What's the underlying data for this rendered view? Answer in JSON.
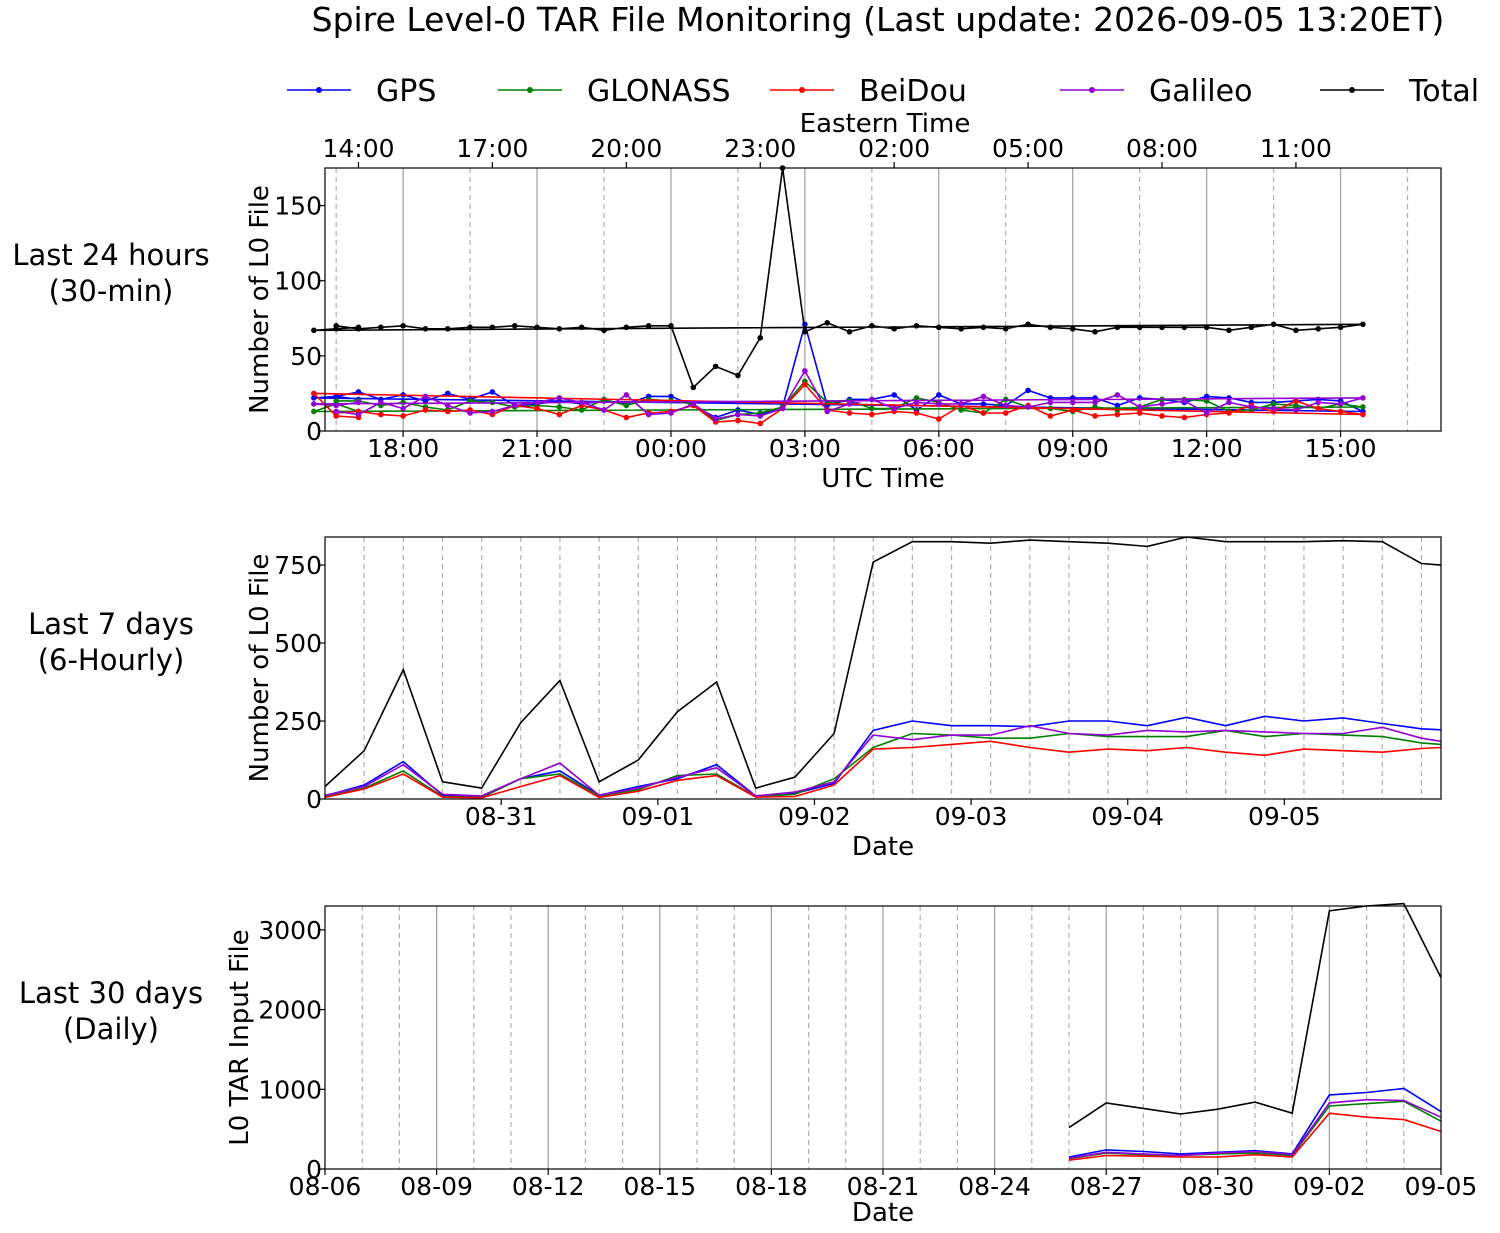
{
  "figure_title": "Spire Level-0 TAR File Monitoring (Last update: 2026-09-05 13:20ET)",
  "legend": [
    {
      "name": "GPS",
      "color": "#0000ff"
    },
    {
      "name": "GLONASS",
      "color": "#008000"
    },
    {
      "name": "BeiDou",
      "color": "#ff0000"
    },
    {
      "name": "Galileo",
      "color": "#9400d3"
    },
    {
      "name": "Total",
      "color": "#000000"
    }
  ],
  "row_labels": [
    [
      "Last 24 hours",
      "(30-min)"
    ],
    [
      "Last 7 days",
      "(6-Hourly)"
    ],
    [
      "Last 30 days",
      "(Daily)"
    ]
  ],
  "chart_data": [
    {
      "type": "line",
      "markers": true,
      "xlabel": "UTC Time",
      "ylabel": "Number of L0 File",
      "top_xlabel": "Eastern Time",
      "x": [
        "16:30",
        "17:00",
        "17:30",
        "18:00",
        "18:30",
        "19:00",
        "19:30",
        "20:00",
        "20:30",
        "21:00",
        "21:30",
        "22:00",
        "22:30",
        "23:00",
        "23:30",
        "00:00",
        "00:30",
        "01:00",
        "01:30",
        "02:00",
        "02:30",
        "03:00",
        "03:30",
        "04:00",
        "04:30",
        "05:00",
        "05:30",
        "06:00",
        "06:30",
        "07:00",
        "07:30",
        "08:00",
        "08:30",
        "09:00",
        "09:30",
        "10:00",
        "10:30",
        "11:00",
        "11:30",
        "12:00",
        "12:30",
        "13:00",
        "13:30",
        "14:00",
        "14:30",
        "15:00",
        "15:30",
        "16:00",
        "16:30",
        "17:00"
      ],
      "xlim_hours": [
        16.25,
        17.25
      ],
      "ylim": [
        0,
        175
      ],
      "yticks": [
        0,
        50,
        100,
        150
      ],
      "xticks": [
        {
          "label": "18:00",
          "hour": 18
        },
        {
          "label": "21:00",
          "hour": 21
        },
        {
          "label": "00:00",
          "hour": 24
        },
        {
          "label": "03:00",
          "hour": 27
        },
        {
          "label": "06:00",
          "hour": 30
        },
        {
          "label": "09:00",
          "hour": 33
        },
        {
          "label": "12:00",
          "hour": 36
        },
        {
          "label": "15:00",
          "hour": 39
        }
      ],
      "top_xticks": [
        "14:00",
        "17:00",
        "20:00",
        "23:00",
        "02:00",
        "05:00",
        "08:00",
        "11:00"
      ],
      "series": [
        {
          "name": "GPS",
          "values": [
            23,
            26,
            21,
            24,
            20,
            25,
            21,
            26,
            17,
            18,
            20,
            18,
            20,
            18,
            23,
            23,
            17,
            9,
            14,
            11,
            16,
            71,
            17,
            21,
            21,
            24,
            14,
            24,
            18,
            18,
            17,
            27,
            22,
            22,
            22,
            17,
            22,
            21,
            19,
            23,
            22,
            19,
            19,
            20,
            21,
            20,
            13,
            22,
            23,
            21
          ]
        },
        {
          "name": "GLONASS",
          "values": [
            20,
            20,
            17,
            19,
            16,
            14,
            20,
            19,
            16,
            17,
            16,
            14,
            21,
            17,
            21,
            20,
            18,
            7,
            11,
            12,
            16,
            33,
            19,
            20,
            15,
            15,
            22,
            19,
            14,
            12,
            21,
            16,
            15,
            13,
            16,
            14,
            16,
            21,
            21,
            20,
            13,
            14,
            18,
            17,
            15,
            18,
            16,
            13,
            18,
            13
          ]
        },
        {
          "name": "BeiDou",
          "values": [
            12,
            13,
            11,
            10,
            14,
            13,
            14,
            11,
            17,
            15,
            11,
            17,
            14,
            9,
            12,
            13,
            17,
            6,
            7,
            5,
            15,
            31,
            14,
            12,
            11,
            13,
            12,
            8,
            17,
            12,
            12,
            17,
            10,
            14,
            10,
            11,
            12,
            10,
            9,
            11,
            12,
            17,
            13,
            20,
            15,
            13,
            11,
            25,
            10,
            9
          ]
        },
        {
          "name": "Galileo",
          "values": [
            13,
            11,
            19,
            15,
            23,
            17,
            12,
            13,
            17,
            19,
            22,
            19,
            14,
            24,
            11,
            12,
            18,
            8,
            11,
            10,
            15,
            40,
            13,
            18,
            21,
            15,
            19,
            18,
            18,
            23,
            17,
            16,
            19,
            19,
            19,
            24,
            16,
            18,
            20,
            12,
            19,
            16,
            15,
            14,
            19,
            18,
            22,
            18,
            17,
            19
          ]
        },
        {
          "name": "Total",
          "values": [
            70,
            68,
            69,
            70,
            68,
            68,
            69,
            69,
            70,
            69,
            68,
            69,
            67,
            69,
            70,
            70,
            29,
            43,
            37,
            62,
            175,
            66,
            72,
            66,
            70,
            68,
            70,
            69,
            68,
            69,
            68,
            71,
            69,
            68,
            66,
            69,
            69,
            69,
            69,
            69,
            67,
            69,
            71,
            67,
            68,
            69,
            71,
            67,
            68,
            69
          ]
        }
      ]
    },
    {
      "type": "line",
      "markers": false,
      "xlabel": "Date",
      "ylabel": "Number of L0 File",
      "xlim_hours": [
        -27,
        144
      ],
      "ylim": [
        0,
        840
      ],
      "yticks": [
        0,
        250,
        500,
        750
      ],
      "x_hours": [
        -27,
        -21,
        -15,
        -9,
        -3,
        3,
        9,
        15,
        21,
        27,
        33,
        39,
        45,
        51,
        57,
        63,
        69,
        75,
        81,
        87,
        93,
        99,
        105,
        111,
        117,
        123,
        129,
        135,
        141,
        144
      ],
      "xticks": [
        {
          "label": "08-31",
          "hour": 0
        },
        {
          "label": "09-01",
          "hour": 24
        },
        {
          "label": "09-02",
          "hour": 48
        },
        {
          "label": "09-03",
          "hour": 72
        },
        {
          "label": "09-04",
          "hour": 96
        },
        {
          "label": "09-05",
          "hour": 120
        }
      ],
      "series": [
        {
          "name": "GPS",
          "values": [
            10,
            45,
            120,
            12,
            8,
            65,
            90,
            12,
            40,
            65,
            110,
            10,
            18,
            50,
            220,
            250,
            235,
            235,
            232,
            250,
            250,
            235,
            262,
            235,
            265,
            250,
            260,
            242,
            225,
            222
          ]
        },
        {
          "name": "GLONASS",
          "values": [
            8,
            35,
            90,
            8,
            5,
            65,
            80,
            10,
            30,
            75,
            80,
            8,
            15,
            65,
            165,
            210,
            205,
            195,
            195,
            210,
            200,
            200,
            200,
            220,
            200,
            210,
            205,
            200,
            180,
            175
          ]
        },
        {
          "name": "BeiDou",
          "values": [
            5,
            32,
            80,
            6,
            4,
            40,
            75,
            5,
            25,
            60,
            75,
            6,
            8,
            45,
            160,
            165,
            175,
            185,
            165,
            150,
            160,
            155,
            165,
            150,
            140,
            160,
            155,
            150,
            162,
            165
          ]
        },
        {
          "name": "Galileo",
          "values": [
            12,
            40,
            110,
            15,
            10,
            65,
            115,
            12,
            35,
            70,
            100,
            10,
            22,
            55,
            205,
            190,
            205,
            205,
            235,
            210,
            205,
            220,
            215,
            220,
            215,
            210,
            210,
            230,
            195,
            185
          ]
        },
        {
          "name": "Total",
          "values": [
            40,
            155,
            415,
            55,
            35,
            245,
            380,
            55,
            125,
            280,
            375,
            35,
            70,
            210,
            760,
            825,
            825,
            820,
            830,
            825,
            820,
            810,
            840,
            825,
            825,
            825,
            828,
            825,
            755,
            750
          ]
        }
      ]
    },
    {
      "type": "line",
      "markers": false,
      "xlabel": "Date",
      "ylabel": "L0 TAR Input File",
      "xlim_days": [
        0,
        30
      ],
      "ylim": [
        0,
        3300
      ],
      "yticks": [
        0,
        1000,
        2000,
        3000
      ],
      "x_days": [
        20,
        21,
        22,
        23,
        24,
        25,
        26,
        27,
        28,
        29,
        30
      ],
      "xticks": [
        {
          "label": "08-06",
          "day": 0
        },
        {
          "label": "08-09",
          "day": 3
        },
        {
          "label": "08-12",
          "day": 6
        },
        {
          "label": "08-15",
          "day": 9
        },
        {
          "label": "08-18",
          "day": 12
        },
        {
          "label": "08-21",
          "day": 15
        },
        {
          "label": "08-24",
          "day": 18
        },
        {
          "label": "08-27",
          "day": 21
        },
        {
          "label": "08-30",
          "day": 24
        },
        {
          "label": "09-02",
          "day": 27
        },
        {
          "label": "09-05",
          "day": 30
        }
      ],
      "series": [
        {
          "name": "GPS",
          "values": [
            150,
            240,
            220,
            190,
            210,
            230,
            190,
            930,
            960,
            1010,
            720
          ]
        },
        {
          "name": "GLONASS",
          "values": [
            130,
            200,
            180,
            170,
            190,
            200,
            170,
            790,
            820,
            850,
            600
          ]
        },
        {
          "name": "BeiDou",
          "values": [
            110,
            170,
            160,
            150,
            150,
            180,
            150,
            700,
            650,
            620,
            470
          ]
        },
        {
          "name": "Galileo",
          "values": [
            135,
            210,
            190,
            170,
            200,
            220,
            180,
            830,
            870,
            860,
            650
          ]
        },
        {
          "name": "Total",
          "values": [
            520,
            830,
            760,
            690,
            750,
            840,
            700,
            3240,
            3300,
            3330,
            2400
          ]
        }
      ]
    }
  ]
}
